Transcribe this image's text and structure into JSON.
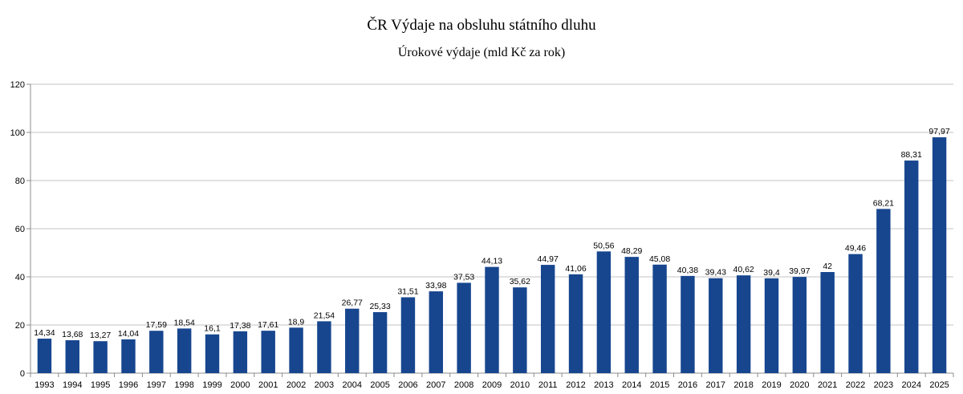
{
  "chart_data": {
    "type": "bar",
    "title": "ČR Výdaje na obsluhu státního dluhu",
    "subtitle": "Úrokové výdaje (mld Kč za rok)",
    "xlabel": "",
    "ylabel": "",
    "ylim": [
      0,
      120
    ],
    "yticks": [
      "0",
      "20",
      "40",
      "60",
      "80",
      "100",
      "120"
    ],
    "grid": true,
    "bar_color": "#17468f",
    "categories": [
      "1993",
      "1994",
      "1995",
      "1996",
      "1997",
      "1998",
      "1999",
      "2000",
      "2001",
      "2002",
      "2003",
      "2004",
      "2005",
      "2006",
      "2007",
      "2008",
      "2009",
      "2010",
      "2011",
      "2012",
      "2013",
      "2014",
      "2015",
      "2016",
      "2017",
      "2018",
      "2019",
      "2020",
      "2021",
      "2022",
      "2023",
      "2024",
      "2025"
    ],
    "values": [
      14.34,
      13.68,
      13.27,
      14.04,
      17.59,
      18.54,
      16.1,
      17.38,
      17.61,
      18.9,
      21.54,
      26.77,
      25.33,
      31.51,
      33.98,
      37.53,
      44.13,
      35.62,
      44.97,
      41.06,
      50.56,
      48.29,
      45.08,
      40.38,
      39.43,
      40.62,
      39.4,
      39.97,
      42,
      49.46,
      68.21,
      88.31,
      97.97
    ],
    "data_labels": [
      "14,34",
      "13,68",
      "13,27",
      "14,04",
      "17,59",
      "18,54",
      "16,1",
      "17,38",
      "17,61",
      "18,9",
      "21,54",
      "26,77",
      "25,33",
      "31,51",
      "33,98",
      "37,53",
      "44,13",
      "35,62",
      "44,97",
      "41,06",
      "50,56",
      "48,29",
      "45,08",
      "40,38",
      "39,43",
      "40,62",
      "39,4",
      "39,97",
      "42",
      "49,46",
      "68,21",
      "88,31",
      "97,97"
    ]
  }
}
